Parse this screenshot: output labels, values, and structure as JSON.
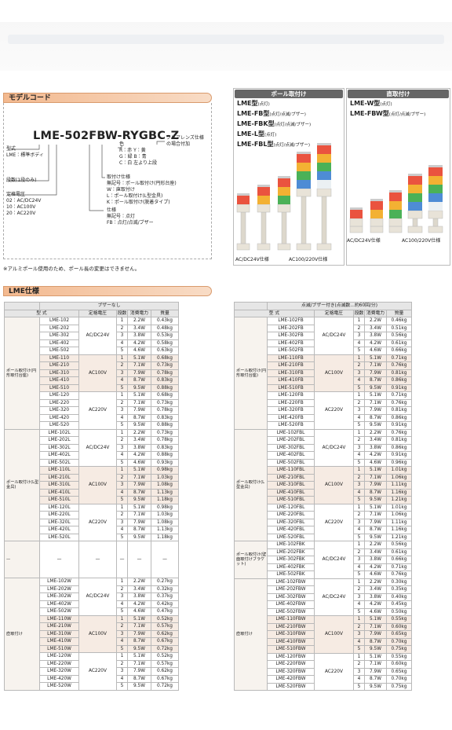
{
  "model_code": {
    "title": "モデルコード",
    "code": "LME-502FBW-RYGBC-Z",
    "annotations": [
      [
        "型式",
        "LME：標準ボディ"
      ],
      [
        "段数(1段のみ)"
      ],
      [
        "定格電圧",
        "02：AC/DC24V",
        "10：AC100V",
        "20：AC220V"
      ],
      [
        "色",
        "R：赤  Y：黄",
        "G：緑  B：青",
        "C：白  左より上段"
      ],
      [
        "クリアレンズ仕様",
        "の場合付加"
      ],
      [
        "取付け仕様",
        "無記号：ポール取付け(円形台座)",
        "W：直取付け",
        "L：ポール取付け(L型金具)",
        "K：ポール取付け(脱着タイプ)"
      ],
      [
        "仕様",
        "無記号：点灯",
        "FB：点灯/点滅/ブザー"
      ]
    ],
    "note": "※アルミポール使用のため、ポール長の変更はできません。"
  },
  "pole_mount": {
    "title": "ポール取付け",
    "types": [
      {
        "name": "LME型",
        "note": "(点灯)"
      },
      {
        "name": "LME-FB型",
        "note": "(点灯/点滅/ブザー)"
      },
      {
        "name": "LME-FBK型",
        "note": "(点灯/点滅/ブザー)"
      },
      {
        "name": "LME-L型",
        "note": "(点灯)"
      },
      {
        "name": "LME-FBL型",
        "note": "(点灯/点滅/ブザー)"
      }
    ],
    "captions": [
      "AC/DC24V仕様",
      "AC100/220V仕様"
    ]
  },
  "direct_mount": {
    "title": "直取付け",
    "types": [
      {
        "name": "LME-W型",
        "note": "(点灯)"
      },
      {
        "name": "LME-FBW型",
        "note": "(点灯/点滅/ブザー)"
      }
    ],
    "captions": [
      "AC/DC24V仕様",
      "AC100/220V仕様"
    ]
  },
  "spec": {
    "title": "LME仕様",
    "tables": [
      {
        "caption": "ブザーなし",
        "headers": [
          "型 式",
          "定格電圧",
          "段数",
          "消費電力",
          "質量"
        ],
        "groups": [
          {
            "type": "ポール取付け(円形取付台座)",
            "blocks": [
              {
                "voltage": "AC/DC24V",
                "rows": [
                  [
                    "LME-102",
                    "1",
                    "2.2W",
                    "0.43kg"
                  ],
                  [
                    "LME-202",
                    "2",
                    "3.4W",
                    "0.48kg"
                  ],
                  [
                    "LME-302",
                    "3",
                    "3.8W",
                    "0.53kg"
                  ],
                  [
                    "LME-402",
                    "4",
                    "4.2W",
                    "0.58kg"
                  ],
                  [
                    "LME-502",
                    "5",
                    "4.6W",
                    "0.63kg"
                  ]
                ]
              },
              {
                "voltage": "AC100V",
                "rows": [
                  [
                    "LME-110",
                    "1",
                    "5.1W",
                    "0.68kg"
                  ],
                  [
                    "LME-210",
                    "2",
                    "7.1W",
                    "0.73kg"
                  ],
                  [
                    "LME-310",
                    "3",
                    "7.9W",
                    "0.78kg"
                  ],
                  [
                    "LME-410",
                    "4",
                    "8.7W",
                    "0.83kg"
                  ],
                  [
                    "LME-510",
                    "5",
                    "9.5W",
                    "0.88kg"
                  ]
                ]
              },
              {
                "voltage": "AC220V",
                "rows": [
                  [
                    "LME-120",
                    "1",
                    "5.1W",
                    "0.68kg"
                  ],
                  [
                    "LME-220",
                    "2",
                    "7.1W",
                    "0.73kg"
                  ],
                  [
                    "LME-320",
                    "3",
                    "7.9W",
                    "0.78kg"
                  ],
                  [
                    "LME-420",
                    "4",
                    "8.7W",
                    "0.83kg"
                  ],
                  [
                    "LME-520",
                    "5",
                    "9.5W",
                    "0.88kg"
                  ]
                ]
              }
            ]
          },
          {
            "type": "ポール取付け(L型金具)",
            "blocks": [
              {
                "voltage": "AC/DC24V",
                "rows": [
                  [
                    "LME-102L",
                    "1",
                    "2.2W",
                    "0.73kg"
                  ],
                  [
                    "LME-202L",
                    "2",
                    "3.4W",
                    "0.78kg"
                  ],
                  [
                    "LME-302L",
                    "3",
                    "3.8W",
                    "0.83kg"
                  ],
                  [
                    "LME-402L",
                    "4",
                    "4.2W",
                    "0.88kg"
                  ],
                  [
                    "LME-502L",
                    "5",
                    "4.6W",
                    "0.93kg"
                  ]
                ]
              },
              {
                "voltage": "AC100V",
                "rows": [
                  [
                    "LME-110L",
                    "1",
                    "5.1W",
                    "0.98kg"
                  ],
                  [
                    "LME-210L",
                    "2",
                    "7.1W",
                    "1.03kg"
                  ],
                  [
                    "LME-310L",
                    "3",
                    "7.9W",
                    "1.08kg"
                  ],
                  [
                    "LME-410L",
                    "4",
                    "8.7W",
                    "1.13kg"
                  ],
                  [
                    "LME-510L",
                    "5",
                    "9.5W",
                    "1.18kg"
                  ]
                ]
              },
              {
                "voltage": "AC220V",
                "rows": [
                  [
                    "LME-120L",
                    "1",
                    "5.1W",
                    "0.98kg"
                  ],
                  [
                    "LME-220L",
                    "2",
                    "7.1W",
                    "1.03kg"
                  ],
                  [
                    "LME-320L",
                    "3",
                    "7.9W",
                    "1.08kg"
                  ],
                  [
                    "LME-420L",
                    "4",
                    "8.7W",
                    "1.13kg"
                  ],
                  [
                    "LME-520L",
                    "5",
                    "9.5W",
                    "1.18kg"
                  ]
                ]
              }
            ]
          },
          {
            "type": "—",
            "blocks": [
              {
                "voltage": "—",
                "rows": [
                  [
                    "—",
                    "—",
                    "—",
                    "—"
                  ]
                ]
              }
            ]
          },
          {
            "type": "直取付け",
            "blocks": [
              {
                "voltage": "AC/DC24V",
                "rows": [
                  [
                    "LME-102W",
                    "1",
                    "2.2W",
                    "0.27kg"
                  ],
                  [
                    "LME-202W",
                    "2",
                    "3.4W",
                    "0.32kg"
                  ],
                  [
                    "LME-302W",
                    "3",
                    "3.8W",
                    "0.37kg"
                  ],
                  [
                    "LME-402W",
                    "4",
                    "4.2W",
                    "0.42kg"
                  ],
                  [
                    "LME-502W",
                    "5",
                    "4.6W",
                    "0.47kg"
                  ]
                ]
              },
              {
                "voltage": "AC100V",
                "rows": [
                  [
                    "LME-110W",
                    "1",
                    "5.1W",
                    "0.52kg"
                  ],
                  [
                    "LME-210W",
                    "2",
                    "7.1W",
                    "0.57kg"
                  ],
                  [
                    "LME-310W",
                    "3",
                    "7.9W",
                    "0.62kg"
                  ],
                  [
                    "LME-410W",
                    "4",
                    "8.7W",
                    "0.67kg"
                  ],
                  [
                    "LME-510W",
                    "5",
                    "9.5W",
                    "0.72kg"
                  ]
                ]
              },
              {
                "voltage": "AC220V",
                "rows": [
                  [
                    "LME-120W",
                    "1",
                    "5.1W",
                    "0.52kg"
                  ],
                  [
                    "LME-220W",
                    "2",
                    "7.1W",
                    "0.57kg"
                  ],
                  [
                    "LME-320W",
                    "3",
                    "7.9W",
                    "0.62kg"
                  ],
                  [
                    "LME-420W",
                    "4",
                    "8.7W",
                    "0.67kg"
                  ],
                  [
                    "LME-520W",
                    "5",
                    "9.5W",
                    "0.72kg"
                  ]
                ]
              }
            ]
          }
        ]
      },
      {
        "caption": "点滅/ブザー付き(点滅数…約60回/分)",
        "headers": [
          "型 式",
          "定格電圧",
          "段数",
          "消費電力",
          "質量"
        ],
        "groups": [
          {
            "type": "ポール取付け(円形取付台座)",
            "blocks": [
              {
                "voltage": "AC/DC24V",
                "rows": [
                  [
                    "LME-102FB",
                    "1",
                    "2.2W",
                    "0.46kg"
                  ],
                  [
                    "LME-202FB",
                    "2",
                    "3.4W",
                    "0.51kg"
                  ],
                  [
                    "LME-302FB",
                    "3",
                    "3.8W",
                    "0.56kg"
                  ],
                  [
                    "LME-402FB",
                    "4",
                    "4.2W",
                    "0.61kg"
                  ],
                  [
                    "LME-502FB",
                    "5",
                    "4.6W",
                    "0.66kg"
                  ]
                ]
              },
              {
                "voltage": "AC100V",
                "rows": [
                  [
                    "LME-110FB",
                    "1",
                    "5.1W",
                    "0.71kg"
                  ],
                  [
                    "LME-210FB",
                    "2",
                    "7.1W",
                    "0.76kg"
                  ],
                  [
                    "LME-310FB",
                    "3",
                    "7.9W",
                    "0.81kg"
                  ],
                  [
                    "LME-410FB",
                    "4",
                    "8.7W",
                    "0.86kg"
                  ],
                  [
                    "LME-510FB",
                    "5",
                    "9.5W",
                    "0.91kg"
                  ]
                ]
              },
              {
                "voltage": "AC220V",
                "rows": [
                  [
                    "LME-120FB",
                    "1",
                    "5.1W",
                    "0.71kg"
                  ],
                  [
                    "LME-220FB",
                    "2",
                    "7.1W",
                    "0.76kg"
                  ],
                  [
                    "LME-320FB",
                    "3",
                    "7.9W",
                    "0.81kg"
                  ],
                  [
                    "LME-420FB",
                    "4",
                    "8.7W",
                    "0.86kg"
                  ],
                  [
                    "LME-520FB",
                    "5",
                    "9.5W",
                    "0.91kg"
                  ]
                ]
              }
            ]
          },
          {
            "type": "ポール取付け(L型金具)",
            "blocks": [
              {
                "voltage": "AC/DC24V",
                "rows": [
                  [
                    "LME-102FBL",
                    "1",
                    "2.2W",
                    "0.76kg"
                  ],
                  [
                    "LME-202FBL",
                    "2",
                    "3.4W",
                    "0.81kg"
                  ],
                  [
                    "LME-302FBL",
                    "3",
                    "3.8W",
                    "0.86kg"
                  ],
                  [
                    "LME-402FBL",
                    "4",
                    "4.2W",
                    "0.91kg"
                  ],
                  [
                    "LME-502FBL",
                    "5",
                    "4.6W",
                    "0.96kg"
                  ]
                ]
              },
              {
                "voltage": "AC100V",
                "rows": [
                  [
                    "LME-110FBL",
                    "1",
                    "5.1W",
                    "1.01kg"
                  ],
                  [
                    "LME-210FBL",
                    "2",
                    "7.1W",
                    "1.06kg"
                  ],
                  [
                    "LME-310FBL",
                    "3",
                    "7.9W",
                    "1.11kg"
                  ],
                  [
                    "LME-410FBL",
                    "4",
                    "8.7W",
                    "1.16kg"
                  ],
                  [
                    "LME-510FBL",
                    "5",
                    "9.5W",
                    "1.21kg"
                  ]
                ]
              },
              {
                "voltage": "AC220V",
                "rows": [
                  [
                    "LME-120FBL",
                    "1",
                    "5.1W",
                    "1.01kg"
                  ],
                  [
                    "LME-220FBL",
                    "2",
                    "7.1W",
                    "1.06kg"
                  ],
                  [
                    "LME-320FBL",
                    "3",
                    "7.9W",
                    "1.11kg"
                  ],
                  [
                    "LME-420FBL",
                    "4",
                    "8.7W",
                    "1.16kg"
                  ],
                  [
                    "LME-520FBL",
                    "5",
                    "9.5W",
                    "1.21kg"
                  ]
                ]
              }
            ]
          },
          {
            "type": "ポール取付け(壁面取付けブラケット)",
            "blocks": [
              {
                "voltage": "AC/DC24V",
                "rows": [
                  [
                    "LME-102FBK",
                    "1",
                    "2.2W",
                    "0.56kg"
                  ],
                  [
                    "LME-202FBK",
                    "2",
                    "3.4W",
                    "0.61kg"
                  ],
                  [
                    "LME-302FBK",
                    "3",
                    "3.8W",
                    "0.66kg"
                  ],
                  [
                    "LME-402FBK",
                    "4",
                    "4.2W",
                    "0.71kg"
                  ],
                  [
                    "LME-502FBK",
                    "5",
                    "4.6W",
                    "0.76kg"
                  ]
                ]
              }
            ]
          },
          {
            "type": "直取付け",
            "blocks": [
              {
                "voltage": "AC/DC24V",
                "rows": [
                  [
                    "LME-102FBW",
                    "1",
                    "2.2W",
                    "0.30kg"
                  ],
                  [
                    "LME-202FBW",
                    "2",
                    "3.4W",
                    "0.35kg"
                  ],
                  [
                    "LME-302FBW",
                    "3",
                    "3.8W",
                    "0.40kg"
                  ],
                  [
                    "LME-402FBW",
                    "4",
                    "4.2W",
                    "0.45kg"
                  ],
                  [
                    "LME-502FBW",
                    "5",
                    "4.6W",
                    "0.50kg"
                  ]
                ]
              },
              {
                "voltage": "AC100V",
                "rows": [
                  [
                    "LME-110FBW",
                    "1",
                    "5.1W",
                    "0.55kg"
                  ],
                  [
                    "LME-210FBW",
                    "2",
                    "7.1W",
                    "0.60kg"
                  ],
                  [
                    "LME-310FBW",
                    "3",
                    "7.9W",
                    "0.65kg"
                  ],
                  [
                    "LME-410FBW",
                    "4",
                    "8.7W",
                    "0.70kg"
                  ],
                  [
                    "LME-510FBW",
                    "5",
                    "9.5W",
                    "0.75kg"
                  ]
                ]
              },
              {
                "voltage": "AC220V",
                "rows": [
                  [
                    "LME-120FBW",
                    "1",
                    "5.1W",
                    "0.55kg"
                  ],
                  [
                    "LME-220FBW",
                    "2",
                    "7.1W",
                    "0.60kg"
                  ],
                  [
                    "LME-320FBW",
                    "3",
                    "7.9W",
                    "0.65kg"
                  ],
                  [
                    "LME-420FBW",
                    "4",
                    "8.7W",
                    "0.70kg"
                  ],
                  [
                    "LME-520FBW",
                    "5",
                    "9.5W",
                    "0.75kg"
                  ]
                ]
              }
            ]
          }
        ]
      }
    ]
  }
}
